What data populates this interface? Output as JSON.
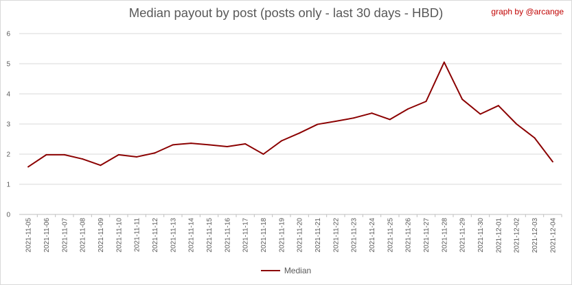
{
  "chart_data": {
    "type": "line",
    "title": "Median payout by post (posts only - last 30 days - HBD)",
    "credit": "graph by @arcange",
    "xlabel": "",
    "ylabel": "",
    "ylim": [
      0,
      6
    ],
    "yticks": [
      0,
      1,
      2,
      3,
      4,
      5,
      6
    ],
    "grid": true,
    "legend_position": "bottom",
    "categories": [
      "2021-11-05",
      "2021-11-06",
      "2021-11-07",
      "2021-11-08",
      "2021-11-09",
      "2021-11-10",
      "2021-11-11",
      "2021-11-12",
      "2021-11-13",
      "2021-11-14",
      "2021-11-15",
      "2021-11-16",
      "2021-11-17",
      "2021-11-18",
      "2021-11-19",
      "2021-11-20",
      "2021-11-21",
      "2021-11-22",
      "2021-11-23",
      "2021-11-24",
      "2021-11-25",
      "2021-11-26",
      "2021-11-27",
      "2021-11-28",
      "2021-11-29",
      "2021-11-30",
      "2021-12-01",
      "2021-12-02",
      "2021-12-03",
      "2021-12-04"
    ],
    "series": [
      {
        "name": "Median",
        "color": "#8b0000",
        "values": [
          1.58,
          1.98,
          1.98,
          1.84,
          1.63,
          1.98,
          1.91,
          2.04,
          2.31,
          2.36,
          2.31,
          2.25,
          2.34,
          2.0,
          2.44,
          2.7,
          2.99,
          3.09,
          3.2,
          3.36,
          3.15,
          3.5,
          3.75,
          5.05,
          3.82,
          3.33,
          3.61,
          3.0,
          2.54,
          1.75
        ]
      }
    ]
  }
}
